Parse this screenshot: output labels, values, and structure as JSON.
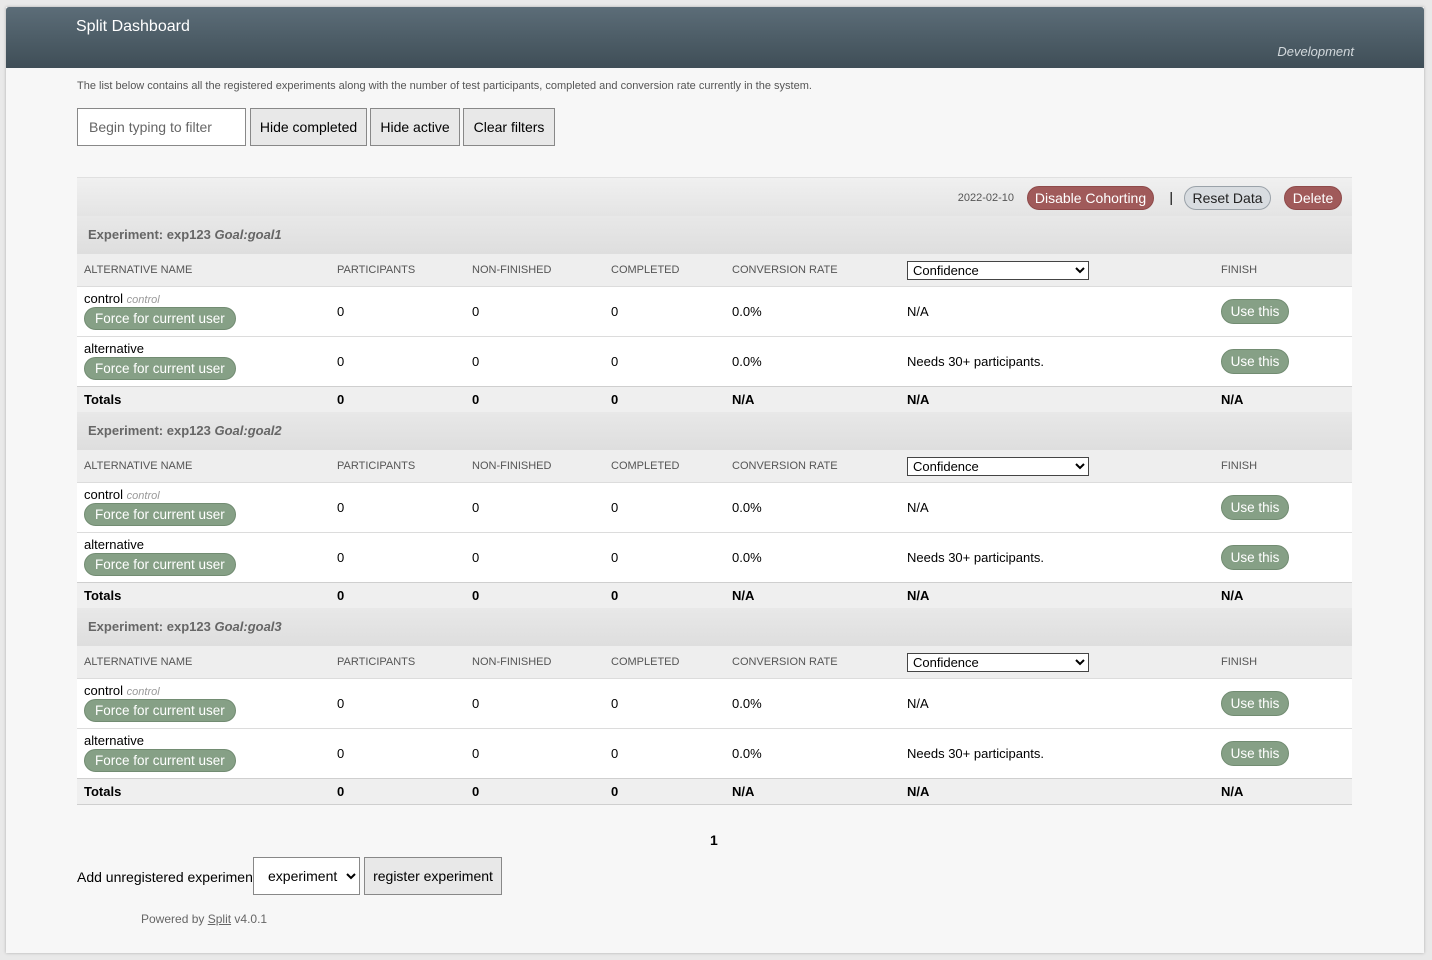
{
  "header": {
    "title": "Split Dashboard",
    "environment": "Development"
  },
  "intro_text": "The list below contains all the registered experiments along with the number of test participants, completed and conversion rate currently in the system.",
  "filters": {
    "placeholder": "Begin typing to filter",
    "hide_completed": "Hide completed",
    "hide_active": "Hide active",
    "clear": "Clear filters"
  },
  "panel": {
    "date": "2022-02-10",
    "disable_cohorting": "Disable Cohorting",
    "separator": "|",
    "reset_data": "Reset Data",
    "delete": "Delete"
  },
  "columns": {
    "alternative_name": "ALTERNATIVE NAME",
    "participants": "PARTICIPANTS",
    "non_finished": "NON-FINISHED",
    "completed": "COMPLETED",
    "conversion_rate": "CONVERSION RATE",
    "confidence_option": "Confidence",
    "finish": "FINISH"
  },
  "buttons": {
    "force": "Force for current user",
    "use_this": "Use this"
  },
  "experiments": [
    {
      "prefix": "Experiment: exp123",
      "goal": "Goal:goal1",
      "rows": [
        {
          "name": "control",
          "tag": "control",
          "participants": "0",
          "non_finished": "0",
          "completed": "0",
          "conversion": "0.0%",
          "confidence": "N/A"
        },
        {
          "name": "alternative",
          "tag": "",
          "participants": "0",
          "non_finished": "0",
          "completed": "0",
          "conversion": "0.0%",
          "confidence": "Needs 30+ participants."
        }
      ],
      "totals": {
        "label": "Totals",
        "participants": "0",
        "non_finished": "0",
        "completed": "0",
        "conversion": "N/A",
        "confidence": "N/A",
        "finish": "N/A"
      }
    },
    {
      "prefix": "Experiment: exp123",
      "goal": "Goal:goal2",
      "rows": [
        {
          "name": "control",
          "tag": "control",
          "participants": "0",
          "non_finished": "0",
          "completed": "0",
          "conversion": "0.0%",
          "confidence": "N/A"
        },
        {
          "name": "alternative",
          "tag": "",
          "participants": "0",
          "non_finished": "0",
          "completed": "0",
          "conversion": "0.0%",
          "confidence": "Needs 30+ participants."
        }
      ],
      "totals": {
        "label": "Totals",
        "participants": "0",
        "non_finished": "0",
        "completed": "0",
        "conversion": "N/A",
        "confidence": "N/A",
        "finish": "N/A"
      }
    },
    {
      "prefix": "Experiment: exp123",
      "goal": "Goal:goal3",
      "rows": [
        {
          "name": "control",
          "tag": "control",
          "participants": "0",
          "non_finished": "0",
          "completed": "0",
          "conversion": "0.0%",
          "confidence": "N/A"
        },
        {
          "name": "alternative",
          "tag": "",
          "participants": "0",
          "non_finished": "0",
          "completed": "0",
          "conversion": "0.0%",
          "confidence": "Needs 30+ participants."
        }
      ],
      "totals": {
        "label": "Totals",
        "participants": "0",
        "non_finished": "0",
        "completed": "0",
        "conversion": "N/A",
        "confidence": "N/A",
        "finish": "N/A"
      }
    }
  ],
  "pagination": {
    "current_page": "1"
  },
  "register": {
    "label": "Add unregistered experiment:",
    "selected": "experiment",
    "button": "register experiment"
  },
  "footer": {
    "prefix": "Powered by",
    "link": "Split",
    "version": "v4.0.1"
  },
  "colors": {
    "header_top": "#5c6d78",
    "header_bottom": "#3f4e57",
    "danger_button": "#a05a5a",
    "success_button": "#86a086",
    "neutral_button": "#d8dce0"
  }
}
